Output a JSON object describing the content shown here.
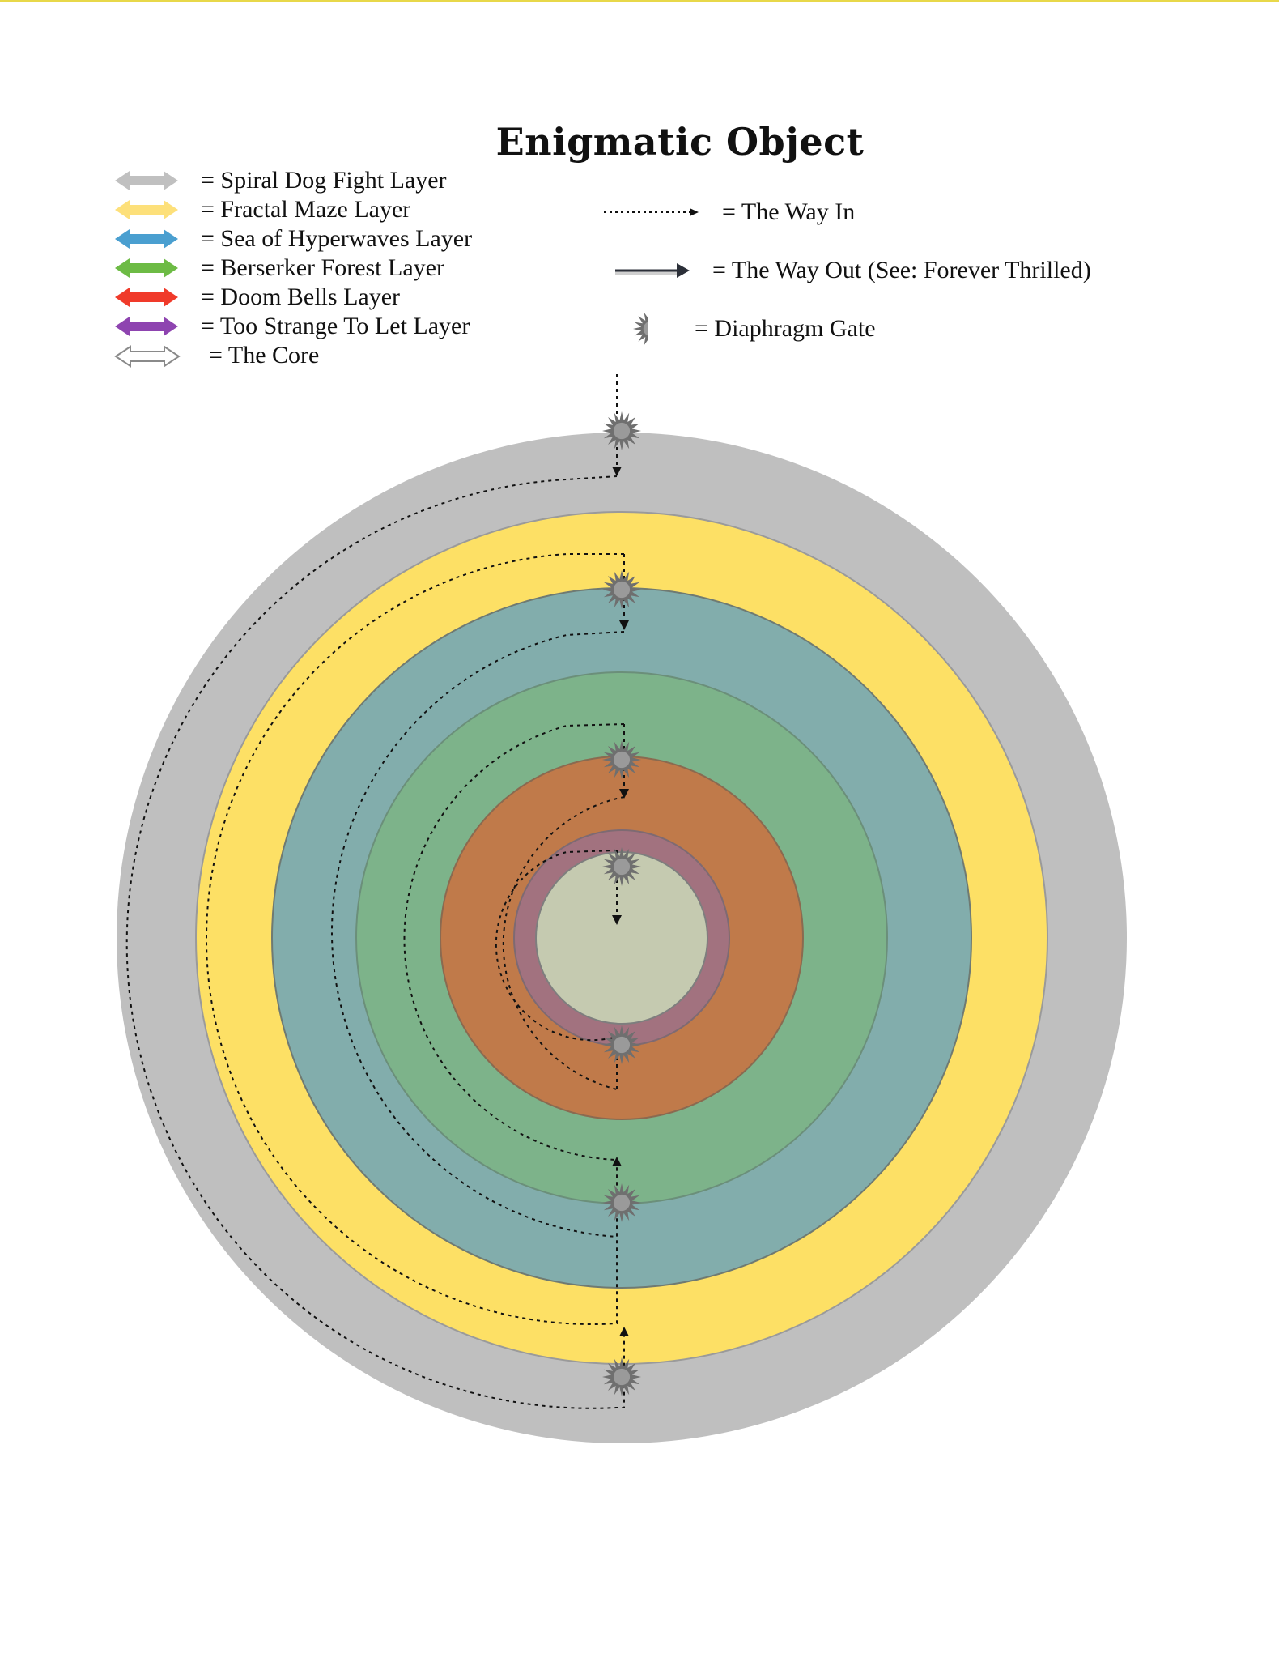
{
  "title": "Enigmatic Object",
  "legend": [
    {
      "label": "= Spiral Dog Fight Layer",
      "color": "#c0c0c0",
      "icon": "double-arrow-icon"
    },
    {
      "label": "= Fractal Maze Layer",
      "color": "#fde07a",
      "icon": "double-arrow-icon"
    },
    {
      "label": "= Sea of Hyperwaves Layer",
      "color": "#4a9fd0",
      "icon": "double-arrow-icon"
    },
    {
      "label": "= Berserker Forest Layer",
      "color": "#6dbb45",
      "icon": "double-arrow-icon"
    },
    {
      "label": "= Doom Bells Layer",
      "color": "#f03a2a",
      "icon": "double-arrow-icon"
    },
    {
      "label": "= Too Strange To Let Layer",
      "color": "#8e44b0",
      "icon": "double-arrow-icon"
    },
    {
      "label": "= The Core",
      "color": "#ffffff",
      "icon": "hollow-double-arrow-icon"
    }
  ],
  "path_legend": {
    "way_in": "= The Way In",
    "way_out": "=  The Way Out (See: Forever Thrilled)",
    "gate": "=  Diaphragm Gate"
  },
  "colors": {
    "outer": "#bfbfbf",
    "fractal": "#fde065",
    "hyperwaves": "#82adac",
    "berserker": "#7db38a",
    "doom": "#c07a4a",
    "strange": "#a2727f",
    "core": "#c5cab0",
    "gate": "#6f6f6f"
  }
}
